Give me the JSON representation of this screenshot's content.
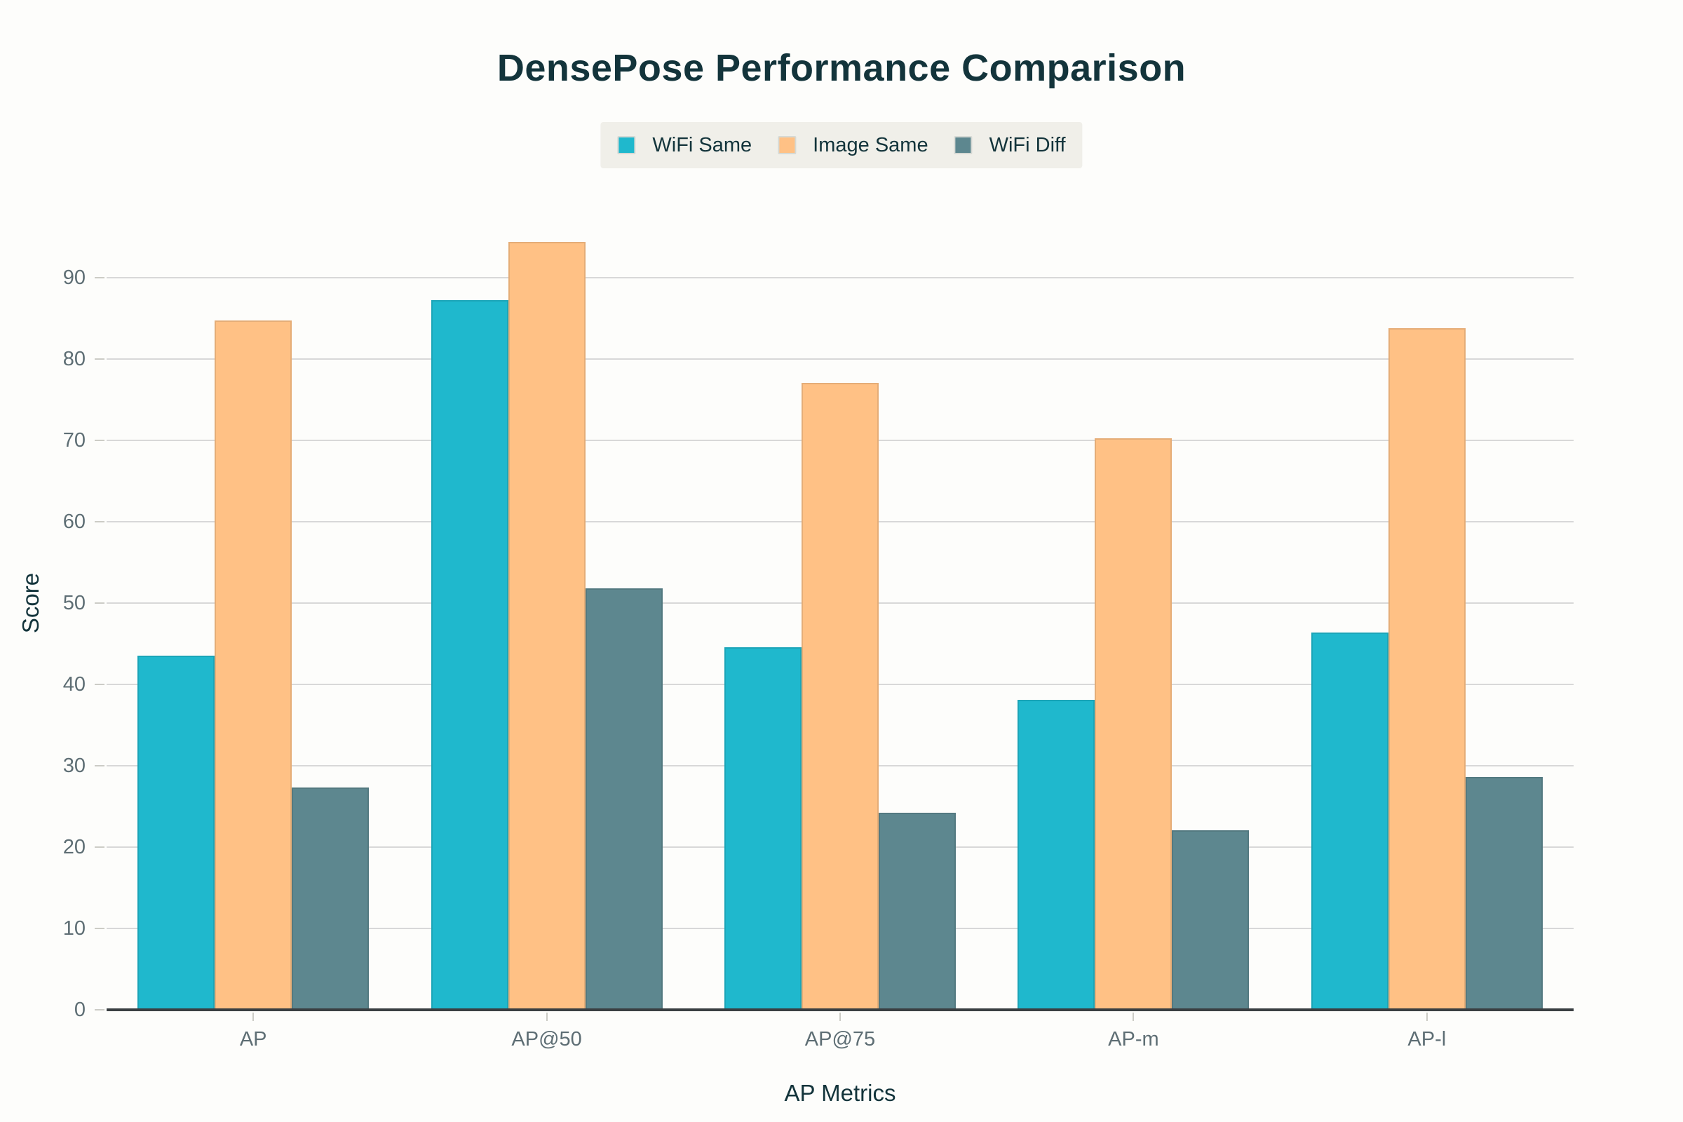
{
  "chart_data": {
    "type": "bar",
    "title": "DensePose Performance Comparison",
    "xlabel": "AP Metrics",
    "ylabel": "Score",
    "categories": [
      "AP",
      "AP@50",
      "AP@75",
      "AP-m",
      "AP-l"
    ],
    "series": [
      {
        "name": "WiFi Same",
        "color": "#1FB8CD",
        "values": [
          43.5,
          87.2,
          44.6,
          38.1,
          46.4
        ]
      },
      {
        "name": "Image Same",
        "color": "#FFC185",
        "values": [
          84.7,
          94.4,
          77.1,
          70.3,
          83.8
        ]
      },
      {
        "name": "WiFi Diff",
        "color": "#5D878F",
        "values": [
          27.3,
          51.8,
          24.2,
          22.1,
          28.6
        ]
      }
    ],
    "ylim": [
      0,
      100
    ],
    "yticks": [
      0,
      10,
      20,
      30,
      40,
      50,
      60,
      70,
      80,
      90
    ],
    "grid": true,
    "legend_position": "top-center",
    "colors": {
      "title_text": "#13343B",
      "axis_title_text": "#13343B",
      "tick_label_text": "#5E6E74",
      "gridline": "#D8D8D8",
      "axis_line": "#3A3F42",
      "tick_mark": "#CCCCC6",
      "legend_background": "#F0EFE9",
      "background": "#FDFDFB"
    }
  }
}
